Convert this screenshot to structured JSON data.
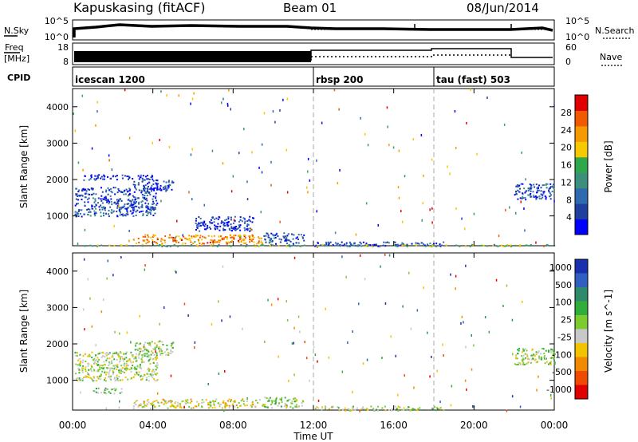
{
  "header": {
    "station": "Kapuskasing (fitACF)",
    "beam": "Beam 01",
    "date": "08/Jun/2014"
  },
  "noise_panel": {
    "left_label": "N.Sky",
    "left_ticks": [
      "10^5",
      "10^0"
    ],
    "right_ticks": [
      "10^5",
      "10^0"
    ],
    "right_label": "N.Search"
  },
  "freq_panel": {
    "left_label_1": "Freq",
    "left_label_2": "[MHz]",
    "left_ticks": [
      "18",
      "8"
    ],
    "right_ticks": [
      "60",
      "0"
    ],
    "right_label": "Nave"
  },
  "cpid": {
    "label": "CPID",
    "segments": [
      {
        "name": "icescan 1200",
        "start_hour": 0,
        "end_hour": 12
      },
      {
        "name": "rbsp 200",
        "start_hour": 12,
        "end_hour": 18
      },
      {
        "name": "tau (fast) 503",
        "start_hour": 18,
        "end_hour": 24
      }
    ]
  },
  "x_axis": {
    "ticks": [
      "00:00",
      "04:00",
      "08:00",
      "12:00",
      "16:00",
      "20:00",
      "00:00"
    ],
    "title": "Time UT"
  },
  "colors": {
    "power_scale": [
      "#0000ff",
      "#1f3f9f",
      "#2e6ab0",
      "#3c8f7a",
      "#2ea84a",
      "#f7c900",
      "#f59a00",
      "#f25a00",
      "#e00000"
    ],
    "velocity_scale": [
      "#1a2fb0",
      "#2f5fc0",
      "#2e8a6a",
      "#2fae3a",
      "#7ccc30",
      "#c8c8c8",
      "#f2c300",
      "#f28a00",
      "#f04a00",
      "#e00000"
    ]
  },
  "chart_data": [
    {
      "type": "heatmap",
      "name": "power",
      "ylabel": "Slant Range [km]",
      "xlim_hours": [
        0,
        24
      ],
      "ylim": [
        180,
        4500
      ],
      "yticks": [
        1000,
        2000,
        3000,
        4000
      ],
      "colorbar": {
        "label": "Power [dB]",
        "ticks": [
          "4",
          "8",
          "12",
          "16",
          "20",
          "24",
          "28"
        ],
        "range": [
          0,
          30
        ]
      },
      "regions": [
        {
          "t0": 0.1,
          "t1": 4.2,
          "r0": 1000,
          "r1": 1800,
          "value": 6
        },
        {
          "t0": 3.0,
          "t1": 5.0,
          "r0": 1700,
          "r1": 2000,
          "value": 5
        },
        {
          "t0": 0.5,
          "t1": 4.0,
          "r0": 2000,
          "r1": 2150,
          "value": 4
        },
        {
          "t0": 3.0,
          "t1": 9.5,
          "r0": 250,
          "r1": 500,
          "value": 22
        },
        {
          "t0": 9.5,
          "t1": 11.5,
          "r0": 250,
          "r1": 550,
          "value": 6
        },
        {
          "t0": 6.0,
          "t1": 9.0,
          "r0": 600,
          "r1": 1000,
          "value": 4
        },
        {
          "t0": 12.0,
          "t1": 18.5,
          "r0": 180,
          "r1": 300,
          "value": 5
        },
        {
          "t0": 22.0,
          "t1": 24.0,
          "r0": 1450,
          "r1": 1900,
          "value": 6
        },
        {
          "t0": 0.0,
          "t1": 24.0,
          "r0": 180,
          "r1": 230,
          "value": 14
        }
      ]
    },
    {
      "type": "heatmap",
      "name": "velocity",
      "ylabel": "Slant Range [km]",
      "xlim_hours": [
        0,
        24
      ],
      "ylim": [
        180,
        4500
      ],
      "yticks": [
        1000,
        2000,
        3000,
        4000
      ],
      "colorbar": {
        "label": "Velocity [m s^-1]",
        "ticks": [
          "1000",
          "500",
          "100",
          "25",
          "-25",
          "-100",
          "-500",
          "-1000"
        ],
        "range": [
          -1000,
          1000
        ]
      },
      "regions": [
        {
          "t0": 0.1,
          "t1": 4.2,
          "r0": 1000,
          "r1": 1800,
          "value": 0
        },
        {
          "t0": 3.0,
          "t1": 5.0,
          "r0": 1700,
          "r1": 2100,
          "value": -60
        },
        {
          "t0": 1.0,
          "t1": 2.5,
          "r0": 650,
          "r1": 800,
          "value": -150
        },
        {
          "t0": 3.0,
          "t1": 9.5,
          "r0": 250,
          "r1": 500,
          "value": 150
        },
        {
          "t0": 9.5,
          "t1": 11.5,
          "r0": 250,
          "r1": 550,
          "value": -60
        },
        {
          "t0": 12.0,
          "t1": 18.5,
          "r0": 180,
          "r1": 300,
          "value": 0
        },
        {
          "t0": 22.0,
          "t1": 24.0,
          "r0": 1450,
          "r1": 1900,
          "value": 0
        }
      ]
    }
  ]
}
